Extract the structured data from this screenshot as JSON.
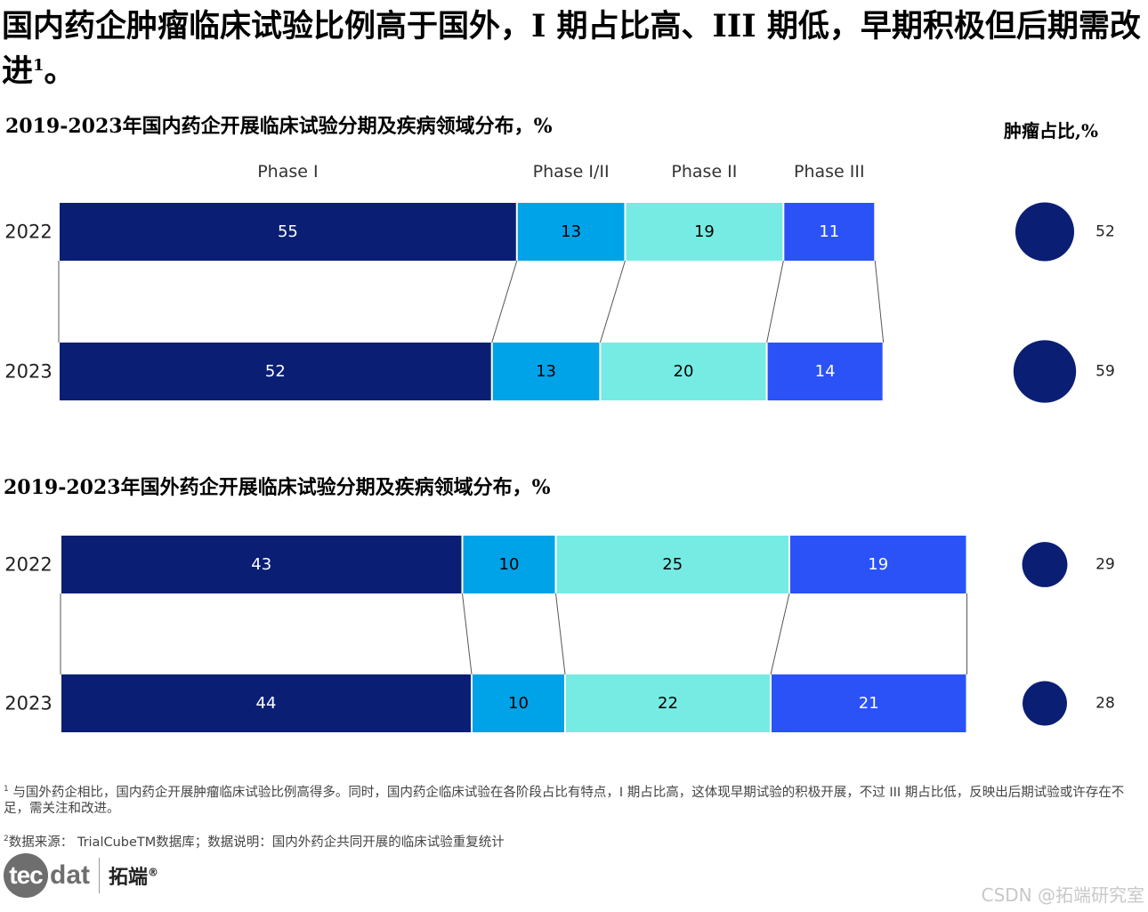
{
  "title": "国内药企肿瘤临床试验比例高于国外，I 期占比高、III 期低，早期积极但后期需改进",
  "title_sup": "1",
  "title_end": "。",
  "tumor_header": "肿瘤占比,%",
  "colors": {
    "phase1": "#0a1f74",
    "phase12": "#00a3e8",
    "phase2": "#76ebe3",
    "phase3": "#2a52f7",
    "bubble": "#0a1f74",
    "connector": "#555555"
  },
  "chart_data": [
    {
      "type": "bar",
      "stacked": true,
      "orientation": "horizontal",
      "title": "2019-2023年国内药企开展临床试验分期及疾病领域分布，%",
      "phases": [
        "Phase I",
        "Phase I/II",
        "Phase II",
        "Phase III"
      ],
      "categories": [
        "2022",
        "2023"
      ],
      "series": [
        {
          "name": "Phase I",
          "values": [
            55,
            52
          ]
        },
        {
          "name": "Phase I/II",
          "values": [
            13,
            13
          ]
        },
        {
          "name": "Phase II",
          "values": [
            19,
            20
          ]
        },
        {
          "name": "Phase III",
          "values": [
            11,
            14
          ]
        }
      ],
      "tumor_share": {
        "name": "肿瘤占比,%",
        "values": [
          52,
          59
        ]
      }
    },
    {
      "type": "bar",
      "stacked": true,
      "orientation": "horizontal",
      "title": "2019-2023年国外药企开展临床试验分期及疾病领域分布，%",
      "phases": [
        "Phase I",
        "Phase I/II",
        "Phase II",
        "Phase III"
      ],
      "categories": [
        "2022",
        "2023"
      ],
      "series": [
        {
          "name": "Phase I",
          "values": [
            43,
            44
          ]
        },
        {
          "name": "Phase I/II",
          "values": [
            10,
            10
          ]
        },
        {
          "name": "Phase II",
          "values": [
            25,
            22
          ]
        },
        {
          "name": "Phase III",
          "values": [
            19,
            21
          ]
        }
      ],
      "tumor_share": {
        "name": "肿瘤占比,%",
        "values": [
          29,
          28
        ]
      }
    }
  ],
  "footnotes": {
    "note1_sup": "1",
    "note1": "与国外药企相比，国内药企开展肿瘤临床试验比例高得多。同时，国内药企临床试验在各阶段占比有特点，I 期占比高，这体现早期试验的积极开展，不过 III 期占比低，反映出后期试验或许存在不足，需关注和改进。",
    "note2_sup": "2",
    "note2": "数据来源： TrialCubeTM数据库；数据说明：国内外药企共同开展的临床试验重复统计"
  },
  "logo": {
    "tec": "tec",
    "dat": "dat",
    "cn": "拓端",
    "reg": "®"
  },
  "watermark": "CSDN @拓端研究室"
}
